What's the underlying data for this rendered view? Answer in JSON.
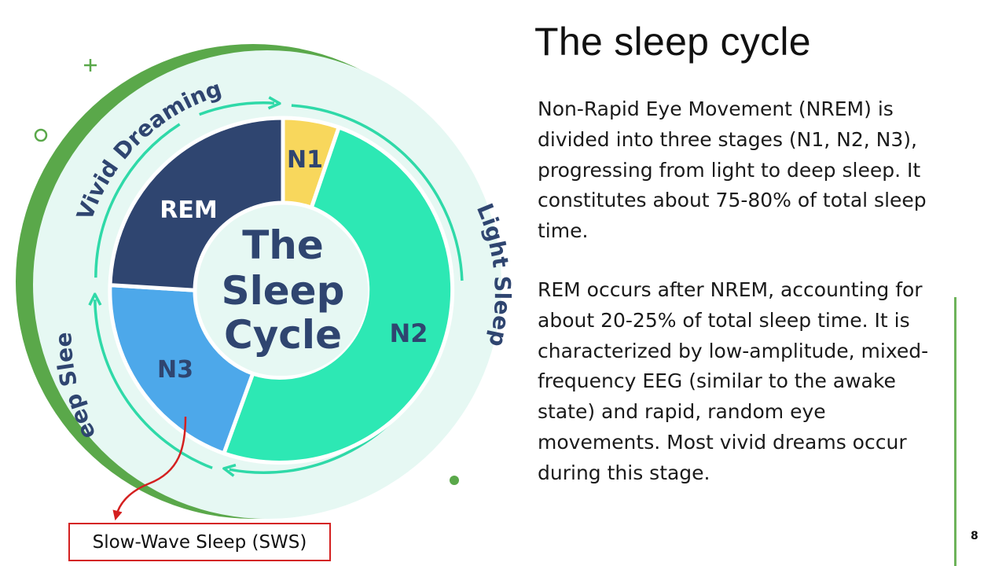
{
  "slide": {
    "title": "The sleep cycle",
    "paragraphs": [
      "Non-Rapid Eye Movement (NREM) is divided into three stages (N1, N2, N3), progressing from light to deep sleep. It constitutes about 75-80% of total sleep time.",
      "REM occurs after NREM, accounting for about 20-25% of total sleep time. It is characterized by low-amplitude, mixed-frequency EEG (similar to the awake state) and rapid, random eye movements. Most vivid dreams occur during this stage."
    ],
    "page_number": "8"
  },
  "diagram": {
    "center_lines": [
      "The",
      "Sleep",
      "Cycle"
    ],
    "segments": [
      {
        "label": "N1",
        "color": "#f8d75c"
      },
      {
        "label": "N2",
        "color": "#2de8b4"
      },
      {
        "label": "N3",
        "color": "#4da8ea"
      },
      {
        "label": "REM",
        "color": "#2f4570"
      }
    ],
    "outer_labels": {
      "vivid": "Vivid Dreaming",
      "light": "Light Sleep",
      "deep": "Deep Sleep"
    },
    "callout": "Slow-Wave Sleep (SWS)",
    "colors": {
      "navy": "#2f4570",
      "teal": "#2fd9a8",
      "green_accent": "#5aa84a",
      "pale_disc": "#e6f8f3",
      "callout_red": "#d42020"
    }
  }
}
